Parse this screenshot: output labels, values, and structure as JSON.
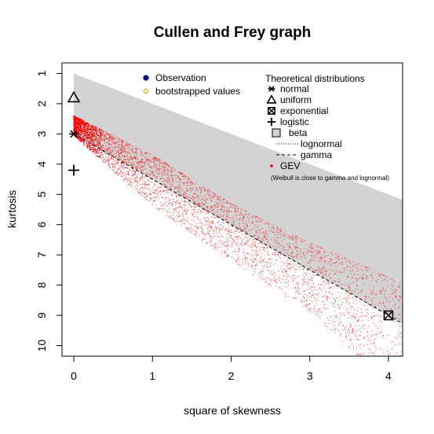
{
  "chart_data": {
    "type": "scatter",
    "title": "Cullen and Frey graph",
    "xlabel": "square of skewness",
    "ylabel": "kurtosis",
    "xlim": [
      -0.15,
      4.18
    ],
    "ylim": [
      10.35,
      0.65
    ],
    "y_reversed": true,
    "x_ticks": [
      0,
      1,
      2,
      3,
      4
    ],
    "y_ticks": [
      1,
      2,
      3,
      4,
      5,
      6,
      7,
      8,
      9,
      10
    ],
    "grid": false,
    "legend_left": {
      "items": [
        {
          "label": "Observation",
          "symbol": "filled-circle",
          "color": "#00008b"
        },
        {
          "label": "bootstrapped values",
          "symbol": "open-diamond",
          "color": "#e0a000"
        }
      ]
    },
    "legend_right": {
      "title": "Theoretical distributions",
      "items": [
        {
          "label": "normal",
          "symbol": "asterisk"
        },
        {
          "label": "uniform",
          "symbol": "triangle"
        },
        {
          "label": "exponential",
          "symbol": "boxed-x"
        },
        {
          "label": "logistic",
          "symbol": "plus"
        },
        {
          "label": "beta",
          "symbol": "gray-square"
        },
        {
          "label": "lognormal",
          "symbol": "dotted-line"
        },
        {
          "label": "gamma",
          "symbol": "dashed-line"
        },
        {
          "label": "GEV",
          "symbol": "red-dot"
        }
      ],
      "note": "(Weibull is close to gamma and lognormal)"
    },
    "theoretical_points": [
      {
        "name": "normal",
        "x": 0,
        "y": 3,
        "symbol": "asterisk"
      },
      {
        "name": "uniform",
        "x": 0,
        "y": 1.8,
        "symbol": "triangle"
      },
      {
        "name": "logistic",
        "x": 0,
        "y": 4.2,
        "symbol": "plus"
      },
      {
        "name": "exponential",
        "x": 4,
        "y": 9,
        "symbol": "boxed-x"
      }
    ],
    "beta_region": {
      "upper": [
        [
          0,
          1
        ],
        [
          4.18,
          5.18
        ]
      ],
      "lower": [
        [
          0,
          3
        ],
        [
          4.18,
          9.27
        ]
      ],
      "color": "#d3d3d3"
    },
    "gamma_line": [
      [
        0,
        3
      ],
      [
        4.18,
        9.27
      ]
    ],
    "gev_cloud": {
      "color": "#ff0000",
      "x_range": [
        0,
        4.18
      ],
      "upper_edge": [
        [
          0,
          2.4
        ],
        [
          1,
          3.7
        ],
        [
          2,
          5.3
        ],
        [
          3,
          6.6
        ],
        [
          4.18,
          7.9
        ]
      ],
      "lower_edge": [
        [
          0,
          3.05
        ],
        [
          1,
          5.4
        ],
        [
          2,
          7.2
        ],
        [
          3,
          8.9
        ],
        [
          3.6,
          10.3
        ]
      ]
    }
  }
}
